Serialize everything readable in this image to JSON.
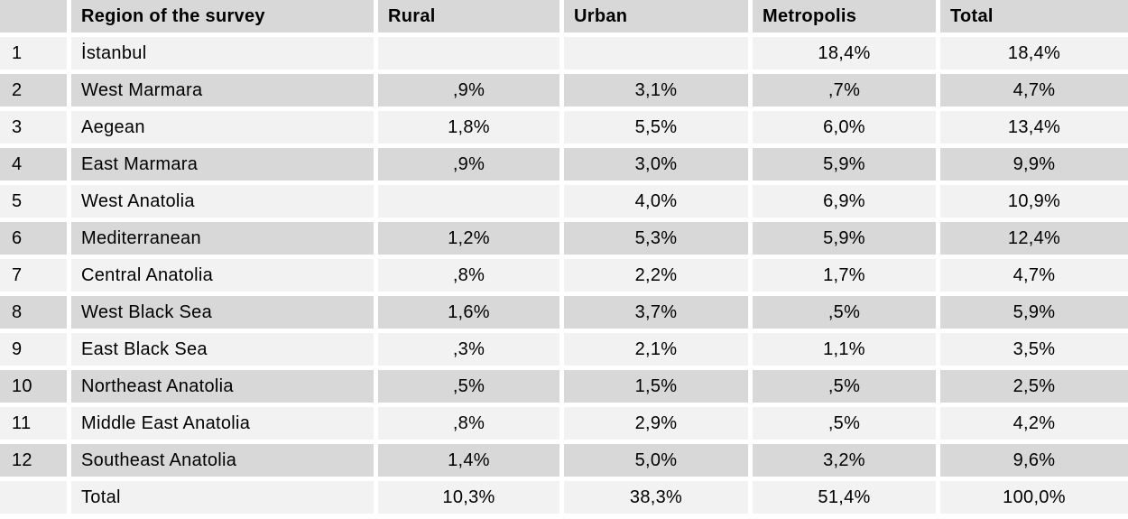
{
  "colors": {
    "header_bg": "#d8d8d8",
    "row_dark_bg": "#d8d8d8",
    "row_light_bg": "#f2f2f2",
    "gutter": "#ffffff",
    "text": "#000000"
  },
  "chart_data": {
    "type": "table",
    "columns": [
      {
        "key": "num",
        "label": ""
      },
      {
        "key": "region",
        "label": "Region of the survey"
      },
      {
        "key": "rural",
        "label": "Rural"
      },
      {
        "key": "urban",
        "label": "Urban"
      },
      {
        "key": "metropolis",
        "label": "Metropolis"
      },
      {
        "key": "total",
        "label": "Total"
      }
    ],
    "rows": [
      [
        "1",
        "İstanbul",
        "",
        "",
        "18,4%",
        "18,4%"
      ],
      [
        "2",
        "West Marmara",
        ",9%",
        "3,1%",
        ",7%",
        "4,7%"
      ],
      [
        "3",
        "Aegean",
        "1,8%",
        "5,5%",
        "6,0%",
        "13,4%"
      ],
      [
        "4",
        "East Marmara",
        ",9%",
        "3,0%",
        "5,9%",
        "9,9%"
      ],
      [
        "5",
        "West Anatolia",
        "",
        "4,0%",
        "6,9%",
        "10,9%"
      ],
      [
        "6",
        "Mediterranean",
        "1,2%",
        "5,3%",
        "5,9%",
        "12,4%"
      ],
      [
        "7",
        "Central Anatolia",
        ",8%",
        "2,2%",
        "1,7%",
        "4,7%"
      ],
      [
        "8",
        "West Black Sea",
        "1,6%",
        "3,7%",
        ",5%",
        "5,9%"
      ],
      [
        "9",
        "East Black Sea",
        ",3%",
        "2,1%",
        "1,1%",
        "3,5%"
      ],
      [
        "10",
        "Northeast Anatolia",
        ",5%",
        "1,5%",
        ",5%",
        "2,5%"
      ],
      [
        "11",
        "Middle East Anatolia",
        ",8%",
        "2,9%",
        ",5%",
        "4,2%"
      ],
      [
        "12",
        "Southeast Anatolia",
        "1,4%",
        "5,0%",
        "3,2%",
        "9,6%"
      ],
      [
        "",
        "Total",
        "10,3%",
        "38,3%",
        "51,4%",
        "100,0%"
      ]
    ]
  }
}
